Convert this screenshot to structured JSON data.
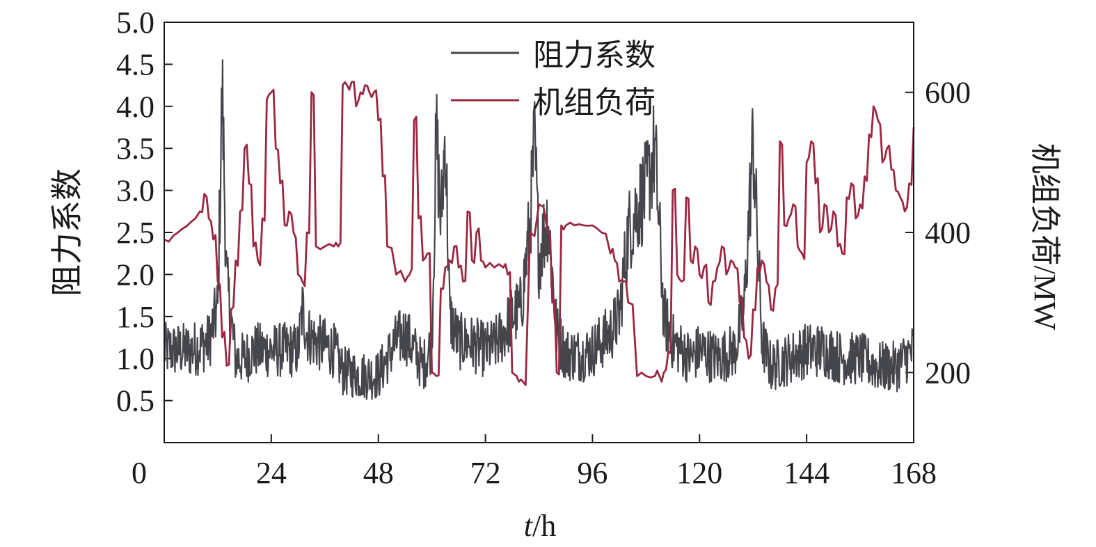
{
  "chart_data": {
    "type": "line",
    "xlabel_italic": "t",
    "xlabel_unit": "/h",
    "ylabel_left": "阻力系数",
    "ylabel_right": "机组负荷/MW",
    "xlim": [
      0,
      168
    ],
    "ylim_left": [
      0,
      5.0
    ],
    "ylim_right": [
      100,
      700
    ],
    "x_ticks": [
      0,
      24,
      48,
      72,
      96,
      120,
      144,
      168
    ],
    "y_left_ticks": [
      "0.5",
      "1.0",
      "1.5",
      "2.0",
      "2.5",
      "3.0",
      "3.5",
      "4.0",
      "4.5",
      "5.0"
    ],
    "y_right_ticks": [
      "200",
      "400",
      "600"
    ],
    "legend_position": "top-center",
    "series": [
      {
        "name": "阻力系数",
        "axis": "left",
        "color": "#45464c",
        "x": [
          0,
          6,
          10,
          12,
          13,
          14,
          16,
          18,
          20,
          22,
          26,
          28,
          30,
          31,
          32,
          34,
          36,
          38,
          40,
          44,
          48,
          50,
          52,
          54,
          56,
          58,
          60,
          61,
          62,
          63,
          64,
          66,
          68,
          70,
          72,
          74,
          76,
          78,
          80,
          82,
          83,
          84,
          86,
          88,
          90,
          92,
          94,
          96,
          98,
          100,
          102,
          104,
          106,
          108,
          110,
          111,
          112,
          114,
          116,
          118,
          120,
          124,
          128,
          130,
          132,
          134,
          136,
          140,
          144,
          148,
          152,
          156,
          160,
          164,
          168
        ],
        "values": [
          1.1,
          1.1,
          1.2,
          1.6,
          4.2,
          1.9,
          1.0,
          1.0,
          1.1,
          1.1,
          1.1,
          1.1,
          1.1,
          1.6,
          1.3,
          1.2,
          1.15,
          1.1,
          0.85,
          0.8,
          0.8,
          1.0,
          1.2,
          1.3,
          1.1,
          0.9,
          1.2,
          3.7,
          2.6,
          3.7,
          1.5,
          1.2,
          1.2,
          1.15,
          1.1,
          1.15,
          1.3,
          1.5,
          1.6,
          2.6,
          3.6,
          2.2,
          2.7,
          1.3,
          1.05,
          1.05,
          1.05,
          1.1,
          1.2,
          1.3,
          1.5,
          2.5,
          2.8,
          3.0,
          3.5,
          2.5,
          1.5,
          1.2,
          1.1,
          1.0,
          1.1,
          1.0,
          1.1,
          1.6,
          3.6,
          1.2,
          0.9,
          1.0,
          1.1,
          1.1,
          1.0,
          1.0,
          0.9,
          0.9,
          1.1
        ]
      },
      {
        "name": "机组负荷",
        "axis": "right",
        "color": "#9b2741",
        "x": [
          0,
          2,
          4,
          6,
          8,
          9,
          10,
          11,
          12,
          13,
          14,
          15,
          16,
          17,
          18,
          19,
          20,
          21,
          22,
          23,
          24,
          25,
          26,
          27,
          28,
          29,
          30,
          31,
          32,
          33,
          34,
          36,
          38,
          39,
          40,
          41,
          42,
          43,
          44,
          45,
          46,
          47,
          48,
          49,
          50,
          52,
          54,
          55,
          56,
          57,
          58,
          59,
          60,
          61,
          62,
          63,
          64,
          65,
          66,
          67,
          68,
          69,
          70,
          71,
          72,
          74,
          76,
          77,
          78,
          79,
          80,
          82,
          84,
          86,
          87,
          88,
          89,
          90,
          92,
          94,
          96,
          98,
          100,
          101,
          102,
          103,
          104,
          106,
          108,
          110,
          111,
          112,
          113,
          114,
          115,
          116,
          117,
          118,
          119,
          120,
          121,
          122,
          123,
          124,
          125,
          126,
          127,
          128,
          129,
          130,
          131,
          132,
          133,
          134,
          135,
          136,
          137,
          138,
          139,
          140,
          141,
          142,
          143,
          144,
          145,
          146,
          147,
          148,
          149,
          150,
          151,
          152,
          153,
          154,
          155,
          156,
          157,
          158,
          159,
          160,
          161,
          162,
          163,
          164,
          165,
          166,
          167,
          168
        ],
        "values": [
          390,
          395,
          405,
          415,
          430,
          455,
          420,
          390,
          330,
          250,
          210,
          290,
          360,
          430,
          520,
          470,
          380,
          360,
          420,
          590,
          600,
          520,
          470,
          410,
          430,
          400,
          340,
          330,
          400,
          600,
          380,
          380,
          380,
          380,
          610,
          610,
          615,
          580,
          600,
          610,
          600,
          600,
          560,
          480,
          380,
          340,
          330,
          340,
          560,
          420,
          360,
          370,
          200,
          195,
          320,
          350,
          360,
          380,
          350,
          330,
          430,
          360,
          400,
          360,
          350,
          350,
          350,
          340,
          200,
          195,
          190,
          400,
          440,
          400,
          300,
          200,
          410,
          410,
          410,
          410,
          410,
          400,
          370,
          360,
          330,
          330,
          300,
          195,
          195,
          195,
          195,
          200,
          230,
          460,
          340,
          330,
          450,
          360,
          380,
          340,
          350,
          300,
          330,
          350,
          380,
          340,
          360,
          350,
          300,
          250,
          220,
          290,
          350,
          360,
          330,
          290,
          320,
          530,
          410,
          420,
          440,
          380,
          370,
          500,
          530,
          470,
          400,
          440,
          400,
          430,
          380,
          370,
          450,
          470,
          420,
          440,
          480,
          540,
          580,
          560,
          500,
          520,
          490,
          460,
          450,
          430,
          470,
          550
        ]
      }
    ]
  }
}
